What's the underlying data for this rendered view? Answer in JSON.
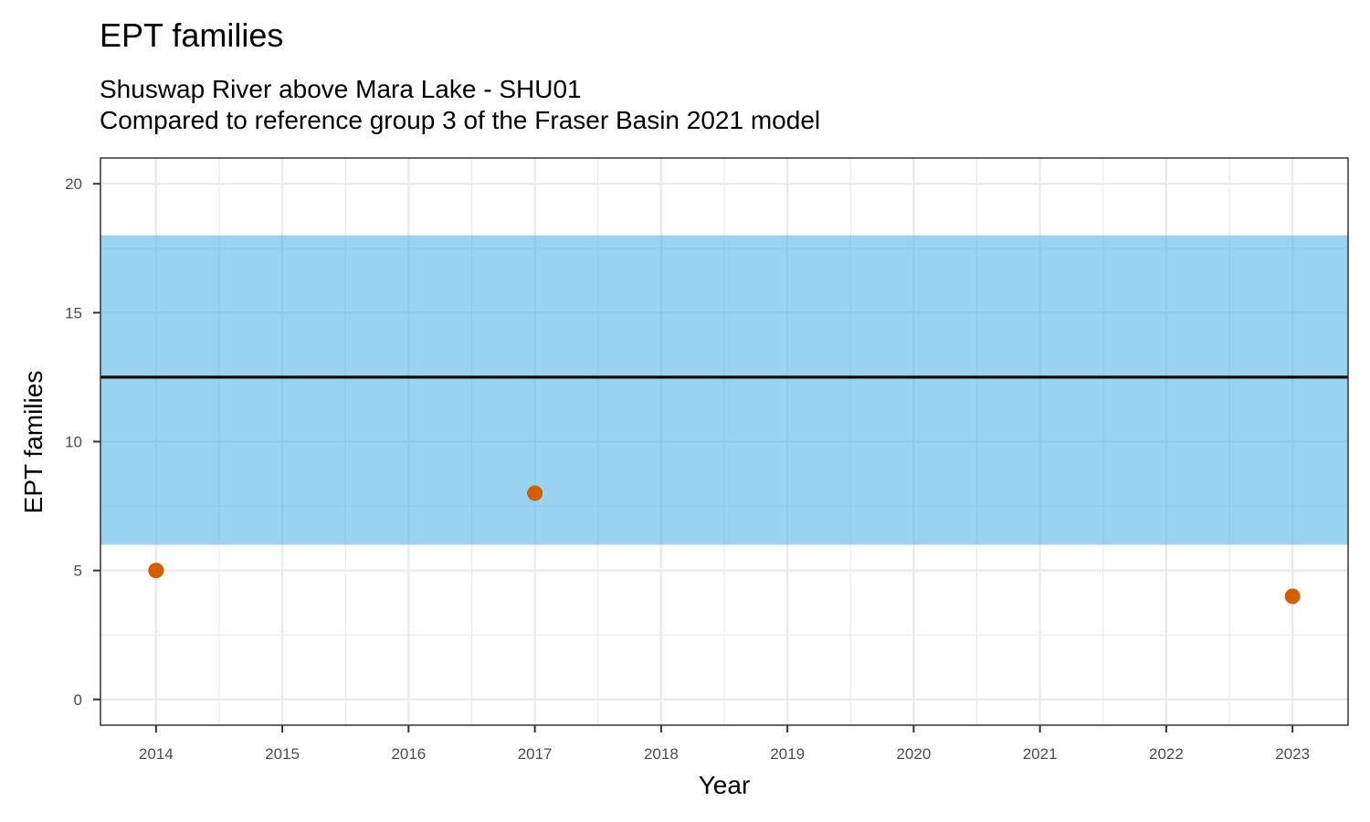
{
  "title": "EPT families",
  "subtitle_lines": [
    "Shuswap River above Mara Lake - SHU01",
    "Compared to reference group 3 of the Fraser Basin 2021 model"
  ],
  "colors": {
    "band": "#56B4E9",
    "points": "#D55E00",
    "reference_line": "#000000",
    "grid": "#ebebeb"
  },
  "chart_data": {
    "type": "scatter",
    "xlabel": "Year",
    "ylabel": "EPT families",
    "xlim": [
      2013.56,
      2023.44
    ],
    "ylim": [
      -1,
      21
    ],
    "x_ticks": [
      "2014",
      "2015",
      "2016",
      "2017",
      "2018",
      "2019",
      "2020",
      "2021",
      "2022",
      "2023"
    ],
    "y_ticks": [
      "0",
      "5",
      "10",
      "15",
      "20"
    ],
    "grid": true,
    "reference_band": {
      "lower": 6,
      "upper": 18
    },
    "reference_line": 12.5,
    "points": [
      {
        "x": 2014,
        "y": 5
      },
      {
        "x": 2017,
        "y": 8
      },
      {
        "x": 2023,
        "y": 4
      }
    ]
  }
}
